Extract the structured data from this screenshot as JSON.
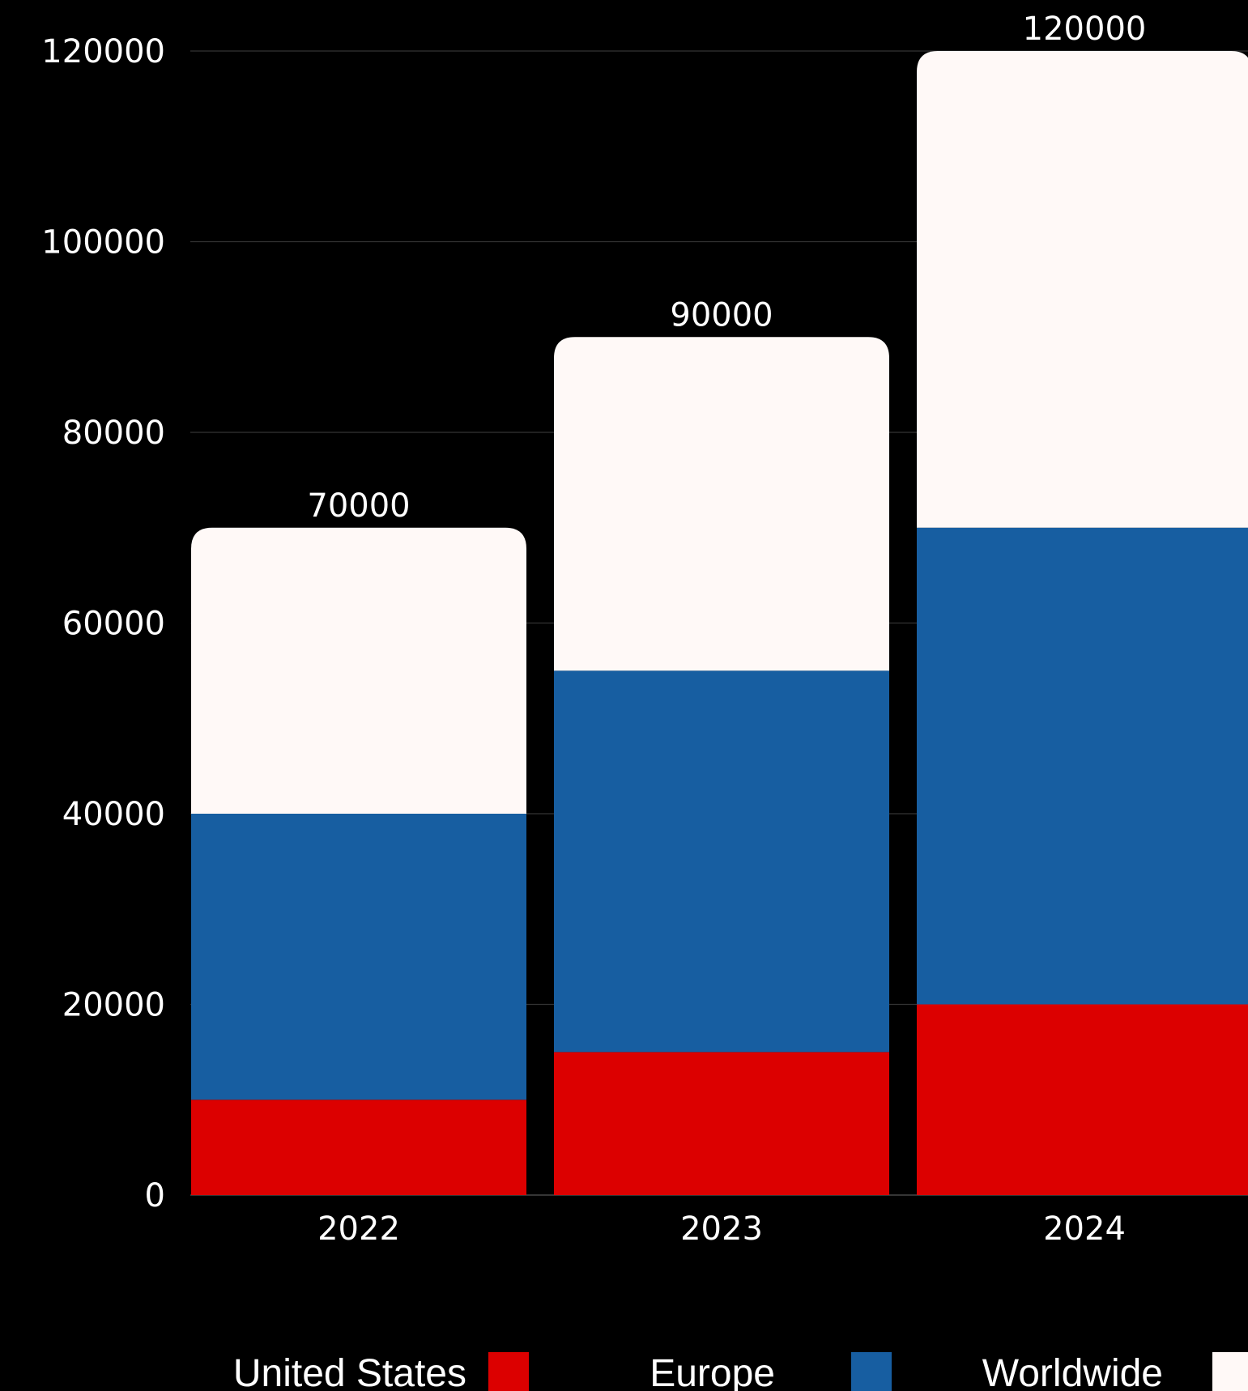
{
  "chart_data": {
    "type": "bar",
    "stacked": true,
    "categories": [
      "2022",
      "2023",
      "2024"
    ],
    "series": [
      {
        "name": "United States",
        "color": "#dc0000",
        "values": [
          10000,
          15000,
          20000
        ]
      },
      {
        "name": "Europe",
        "color": "#175ea1",
        "values": [
          30000,
          40000,
          50000
        ]
      },
      {
        "name": "Worldwide",
        "color": "#fff9f7",
        "values": [
          30000,
          35000,
          50000
        ]
      }
    ],
    "totals": [
      "70000",
      "90000",
      "120000"
    ],
    "yticks": [
      "0",
      "20000",
      "40000",
      "60000",
      "80000",
      "100000",
      "120000"
    ],
    "ylim": [
      0,
      120000
    ],
    "grid": true,
    "legend_position": "bottom",
    "background": "#000000",
    "gridline_color": "#333333",
    "title": "",
    "xlabel": "",
    "ylabel": ""
  }
}
